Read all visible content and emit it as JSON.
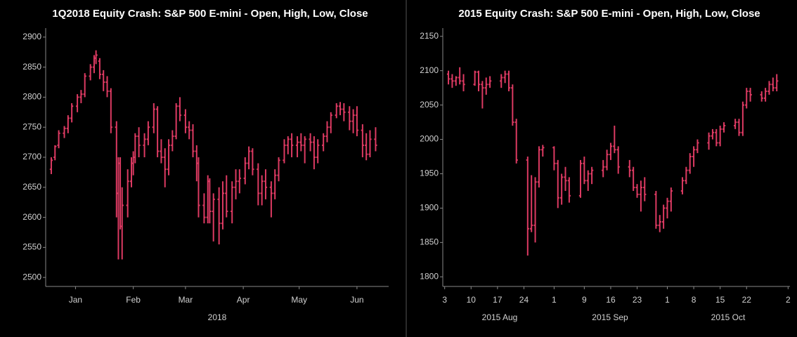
{
  "chart_data": [
    {
      "type": "ohlc",
      "title": "1Q2018 Equity Crash: S&P 500 E-mini - Open, High, Low, Close",
      "xlabel": "2018",
      "color": "#dc3a62",
      "xlim": [
        -2,
        182
      ],
      "ylim": [
        2485,
        2915
      ],
      "xticks": [
        {
          "value": 14,
          "label": "Jan"
        },
        {
          "value": 45,
          "label": "Feb"
        },
        {
          "value": 73,
          "label": "Mar"
        },
        {
          "value": 104,
          "label": "Apr"
        },
        {
          "value": 134,
          "label": "May"
        },
        {
          "value": 165,
          "label": "Jun"
        }
      ],
      "yticks": [
        2500,
        2550,
        2600,
        2650,
        2700,
        2750,
        2800,
        2850,
        2900
      ],
      "x": [
        1,
        3,
        5,
        8,
        10,
        12,
        15,
        17,
        19,
        22,
        24,
        25,
        27,
        29,
        31,
        33,
        36,
        37,
        38,
        39,
        42,
        44,
        45,
        46,
        48,
        51,
        53,
        56,
        58,
        60,
        62,
        64,
        66,
        68,
        70,
        73,
        75,
        77,
        79,
        80,
        83,
        85,
        86,
        88,
        91,
        93,
        95,
        98,
        100,
        102,
        105,
        107,
        109,
        112,
        114,
        116,
        119,
        121,
        123,
        126,
        128,
        130,
        133,
        135,
        137,
        140,
        142,
        144,
        147,
        149,
        151,
        154,
        156,
        158,
        161,
        163,
        165,
        168,
        170,
        172,
        175
      ],
      "open": [
        2680,
        2700,
        2720,
        2740,
        2748,
        2765,
        2785,
        2800,
        2805,
        2835,
        2850,
        2865,
        2860,
        2838,
        2825,
        2810,
        2750,
        2640,
        2690,
        2585,
        2620,
        2660,
        2690,
        2700,
        2735,
        2720,
        2730,
        2750,
        2780,
        2710,
        2700,
        2680,
        2720,
        2735,
        2785,
        2770,
        2750,
        2745,
        2710,
        2690,
        2620,
        2600,
        2660,
        2610,
        2630,
        2590,
        2640,
        2610,
        2650,
        2660,
        2665,
        2690,
        2710,
        2680,
        2640,
        2660,
        2650,
        2640,
        2670,
        2695,
        2720,
        2730,
        2720,
        2725,
        2720,
        2730,
        2725,
        2700,
        2720,
        2735,
        2750,
        2770,
        2785,
        2780,
        2775,
        2760,
        2770,
        2745,
        2720,
        2705,
        2730
      ],
      "high": [
        2700,
        2720,
        2745,
        2752,
        2770,
        2790,
        2805,
        2812,
        2840,
        2855,
        2870,
        2878,
        2865,
        2845,
        2835,
        2815,
        2760,
        2700,
        2700,
        2650,
        2680,
        2700,
        2710,
        2740,
        2750,
        2740,
        2760,
        2790,
        2785,
        2730,
        2715,
        2730,
        2745,
        2790,
        2800,
        2780,
        2760,
        2755,
        2720,
        2700,
        2640,
        2670,
        2665,
        2640,
        2650,
        2660,
        2670,
        2660,
        2680,
        2680,
        2700,
        2718,
        2715,
        2690,
        2670,
        2680,
        2660,
        2680,
        2700,
        2730,
        2735,
        2740,
        2735,
        2740,
        2735,
        2740,
        2735,
        2730,
        2740,
        2760,
        2775,
        2790,
        2792,
        2790,
        2785,
        2780,
        2785,
        2755,
        2740,
        2745,
        2750
      ],
      "low": [
        2672,
        2695,
        2715,
        2732,
        2740,
        2758,
        2775,
        2790,
        2800,
        2828,
        2840,
        2855,
        2830,
        2810,
        2800,
        2740,
        2600,
        2530,
        2580,
        2530,
        2600,
        2650,
        2670,
        2690,
        2700,
        2700,
        2720,
        2740,
        2700,
        2690,
        2650,
        2670,
        2710,
        2730,
        2760,
        2740,
        2730,
        2700,
        2660,
        2600,
        2590,
        2590,
        2590,
        2560,
        2555,
        2580,
        2600,
        2590,
        2630,
        2640,
        2655,
        2680,
        2670,
        2620,
        2620,
        2630,
        2600,
        2630,
        2660,
        2690,
        2705,
        2700,
        2700,
        2710,
        2690,
        2710,
        2680,
        2690,
        2710,
        2725,
        2740,
        2765,
        2770,
        2760,
        2745,
        2740,
        2735,
        2700,
        2695,
        2700,
        2710
      ],
      "close": [
        2695,
        2718,
        2740,
        2748,
        2765,
        2785,
        2800,
        2805,
        2835,
        2850,
        2865,
        2870,
        2838,
        2825,
        2810,
        2750,
        2640,
        2690,
        2585,
        2620,
        2660,
        2690,
        2700,
        2735,
        2720,
        2730,
        2750,
        2780,
        2710,
        2700,
        2680,
        2720,
        2735,
        2785,
        2770,
        2750,
        2745,
        2710,
        2690,
        2620,
        2600,
        2660,
        2610,
        2630,
        2590,
        2640,
        2610,
        2650,
        2660,
        2665,
        2690,
        2710,
        2680,
        2640,
        2660,
        2650,
        2640,
        2670,
        2695,
        2720,
        2730,
        2720,
        2725,
        2720,
        2730,
        2725,
        2700,
        2720,
        2735,
        2750,
        2770,
        2785,
        2780,
        2775,
        2760,
        2770,
        2745,
        2720,
        2705,
        2730,
        2720
      ]
    },
    {
      "type": "ohlc",
      "title": "2015 Equity Crash: S&P 500 E-mini - Open, High, Low, Close",
      "xgroups": [
        "2015 Aug",
        "2015 Sep",
        "2015 Oct"
      ],
      "color": "#dc3a62",
      "xlim": [
        1.5,
        93.5
      ],
      "ylim": [
        1786,
        2162
      ],
      "xticks": [
        {
          "value": 2,
          "label": "3"
        },
        {
          "value": 9,
          "label": "10"
        },
        {
          "value": 16,
          "label": "17"
        },
        {
          "value": 23,
          "label": "24"
        },
        {
          "value": 31,
          "label": "1"
        },
        {
          "value": 39,
          "label": "9"
        },
        {
          "value": 46,
          "label": "16"
        },
        {
          "value": 53,
          "label": "23"
        },
        {
          "value": 61,
          "label": "1"
        },
        {
          "value": 68,
          "label": "8"
        },
        {
          "value": 75,
          "label": "15"
        },
        {
          "value": 82,
          "label": "22"
        },
        {
          "value": 93,
          "label": "2"
        }
      ],
      "yticks": [
        1800,
        1850,
        1900,
        1950,
        2000,
        2050,
        2100,
        2150
      ],
      "x": [
        3,
        4,
        5,
        6,
        7,
        10,
        11,
        12,
        13,
        14,
        17,
        18,
        19,
        20,
        21,
        24,
        25,
        26,
        27,
        28,
        31,
        32,
        33,
        34,
        35,
        38,
        39,
        40,
        41,
        44,
        45,
        46,
        47,
        48,
        51,
        52,
        53,
        54,
        55,
        58,
        59,
        60,
        61,
        62,
        65,
        66,
        67,
        68,
        69,
        72,
        73,
        74,
        75,
        76,
        79,
        80,
        81,
        82,
        83,
        86,
        87,
        88,
        89,
        90
      ],
      "open": [
        2095,
        2088,
        2085,
        2090,
        2085,
        2080,
        2098,
        2080,
        2075,
        2080,
        2085,
        2090,
        2095,
        2075,
        2025,
        1970,
        1870,
        1875,
        1938,
        1985,
        1988,
        1965,
        1915,
        1945,
        1940,
        1918,
        1965,
        1940,
        1950,
        1955,
        1960,
        1978,
        1990,
        1985,
        1960,
        1955,
        1930,
        1920,
        1930,
        1920,
        1875,
        1880,
        1900,
        1910,
        1925,
        1940,
        1955,
        1975,
        1985,
        1995,
        2005,
        2010,
        1995,
        2015,
        2020,
        2025,
        2010,
        2050,
        2070,
        2065,
        2060,
        2070,
        2080,
        2075
      ],
      "high": [
        2100,
        2095,
        2092,
        2105,
        2095,
        2100,
        2100,
        2085,
        2090,
        2092,
        2095,
        2100,
        2100,
        2080,
        2030,
        1975,
        1948,
        1945,
        1990,
        1992,
        1990,
        1970,
        1950,
        1960,
        1945,
        1970,
        1975,
        1955,
        1960,
        1970,
        1985,
        1995,
        2020,
        1990,
        1970,
        1960,
        1935,
        1940,
        1945,
        1925,
        1890,
        1905,
        1915,
        1930,
        1945,
        1960,
        1980,
        1990,
        2000,
        2010,
        2015,
        2015,
        2020,
        2025,
        2030,
        2030,
        2055,
        2075,
        2075,
        2070,
        2075,
        2085,
        2090,
        2095
      ],
      "low": [
        2080,
        2075,
        2078,
        2080,
        2070,
        2078,
        2070,
        2045,
        2065,
        2075,
        2075,
        2082,
        2070,
        2020,
        1965,
        1831,
        1865,
        1850,
        1930,
        1975,
        1955,
        1900,
        1905,
        1925,
        1908,
        1915,
        1935,
        1925,
        1935,
        1945,
        1955,
        1970,
        1980,
        1950,
        1945,
        1925,
        1915,
        1895,
        1910,
        1870,
        1865,
        1870,
        1885,
        1895,
        1920,
        1935,
        1950,
        1960,
        1980,
        1985,
        2000,
        1990,
        1990,
        2010,
        2015,
        2005,
        2005,
        2045,
        2055,
        2055,
        2055,
        2065,
        2070,
        2070
      ],
      "close": [
        2088,
        2085,
        2090,
        2085,
        2080,
        2098,
        2080,
        2075,
        2080,
        2085,
        2090,
        2095,
        2075,
        2025,
        1970,
        1870,
        1875,
        1938,
        1985,
        1988,
        1965,
        1915,
        1945,
        1940,
        1918,
        1965,
        1940,
        1950,
        1955,
        1960,
        1978,
        1990,
        1985,
        1960,
        1955,
        1930,
        1920,
        1930,
        1920,
        1875,
        1880,
        1900,
        1910,
        1925,
        1940,
        1955,
        1975,
        1985,
        1995,
        2005,
        2010,
        1995,
        2015,
        2020,
        2025,
        2010,
        2050,
        2070,
        2065,
        2060,
        2070,
        2080,
        2075,
        2085
      ]
    }
  ]
}
